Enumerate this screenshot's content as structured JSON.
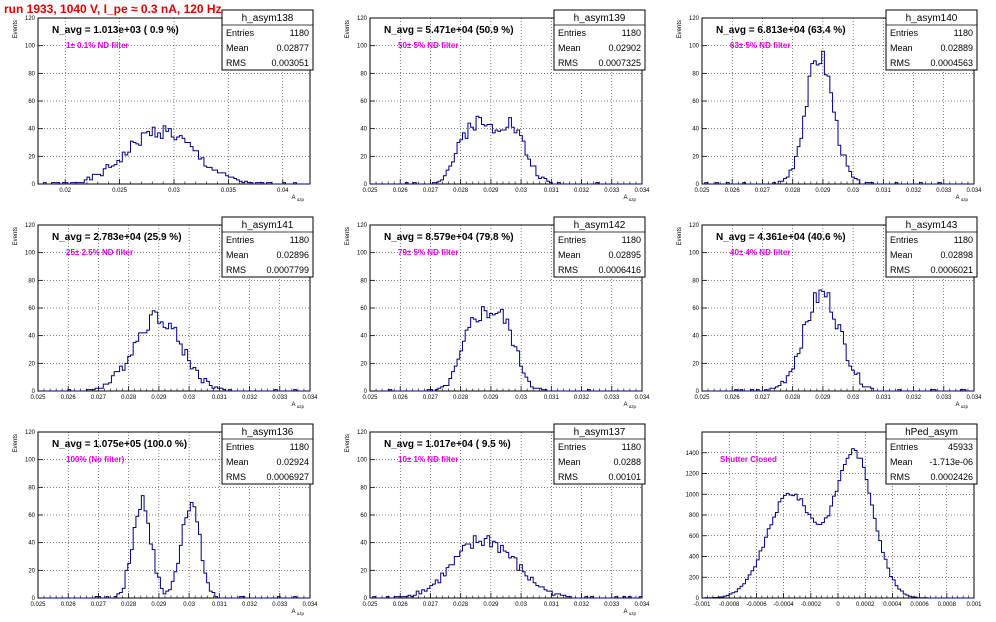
{
  "page": {
    "title": "run 1933,  1040 V, I_pe ≈ 0.3 nA, 120 Hz",
    "title_color": "#e00000",
    "hist_color": "#000080",
    "annotation_color": "#e000e0",
    "grid": true
  },
  "chart_data": [
    {
      "type": "histogram",
      "stats_name": "h_asym138",
      "stats": [
        [
          "Entries",
          "1180"
        ],
        [
          "Mean",
          "0.02877"
        ],
        [
          "RMS",
          "0.003051"
        ]
      ],
      "navg_label": "N_avg = 1.013e+03 ( 0.9 %)",
      "filter_label": "1± 0.1% ND filter",
      "ylabel": "Events",
      "xlabel": "A_uzp",
      "xlim": [
        0.0175,
        0.0425
      ],
      "ylim": [
        0,
        120
      ],
      "xticks": [
        "0.02",
        "0.025",
        "0.03",
        "0.035",
        "0.04"
      ],
      "xtick_values": [
        0.02,
        0.025,
        0.03,
        0.035,
        0.04
      ],
      "yticks": [
        0,
        20,
        40,
        60,
        80,
        100,
        120
      ],
      "shape": {
        "kind": "gauss",
        "mu": 0.02877,
        "sigma": 0.003051,
        "entries": 1180,
        "bins": 100,
        "seed": 1
      }
    },
    {
      "type": "histogram",
      "stats_name": "h_asym139",
      "stats": [
        [
          "Entries",
          "1180"
        ],
        [
          "Mean",
          "0.02902"
        ],
        [
          "RMS",
          "0.0007325"
        ]
      ],
      "navg_label": "N_avg = 5.471e+04 (50.9 %)",
      "filter_label": "50± 5% ND filter",
      "ylabel": "Events",
      "xlabel": "A_uzp",
      "xlim": [
        0.025,
        0.034
      ],
      "ylim": [
        0,
        120
      ],
      "xticks": [
        "0.025",
        "0.026",
        "0.027",
        "0.028",
        "0.029",
        "0.03",
        "0.031",
        "0.032",
        "0.033",
        "0.034"
      ],
      "xtick_values": [
        0.025,
        0.026,
        0.027,
        0.028,
        0.029,
        0.03,
        0.031,
        0.032,
        0.033,
        0.034
      ],
      "yticks": [
        0,
        20,
        40,
        60,
        80,
        100,
        120
      ],
      "shape": {
        "kind": "dgauss",
        "mu": 0.02902,
        "sep": 0.0012,
        "sigma": 0.0005,
        "entries": 1180,
        "bins": 100,
        "seed": 2
      }
    },
    {
      "type": "histogram",
      "stats_name": "h_asym140",
      "stats": [
        [
          "Entries",
          "1180"
        ],
        [
          "Mean",
          "0.02889"
        ],
        [
          "RMS",
          "0.0004563"
        ]
      ],
      "navg_label": "N_avg = 6.813e+04 (63.4 %)",
      "filter_label": "63± 5% ND filter",
      "ylabel": "Events",
      "xlabel": "A_uzp",
      "xlim": [
        0.025,
        0.034
      ],
      "ylim": [
        0,
        120
      ],
      "xticks": [
        "0.025",
        "0.026",
        "0.027",
        "0.028",
        "0.029",
        "0.03",
        "0.031",
        "0.032",
        "0.033",
        "0.034"
      ],
      "xtick_values": [
        0.025,
        0.026,
        0.027,
        0.028,
        0.029,
        0.03,
        0.031,
        0.032,
        0.033,
        0.034
      ],
      "yticks": [
        0,
        20,
        40,
        60,
        80,
        100,
        120
      ],
      "shape": {
        "kind": "gauss",
        "mu": 0.02889,
        "sigma": 0.0004563,
        "entries": 1180,
        "bins": 100,
        "seed": 3
      }
    },
    {
      "type": "histogram",
      "stats_name": "h_asym141",
      "stats": [
        [
          "Entries",
          "1180"
        ],
        [
          "Mean",
          "0.02896"
        ],
        [
          "RMS",
          "0.0007799"
        ]
      ],
      "navg_label": "N_avg = 2.783e+04 (25.9 %)",
      "filter_label": "25± 2.5% ND filter",
      "ylabel": "Events",
      "xlabel": "A_uzp",
      "xlim": [
        0.025,
        0.034
      ],
      "ylim": [
        0,
        120
      ],
      "xticks": [
        "0.025",
        "0.026",
        "0.027",
        "0.028",
        "0.029",
        "0.03",
        "0.031",
        "0.032",
        "0.033",
        "0.034"
      ],
      "xtick_values": [
        0.025,
        0.026,
        0.027,
        0.028,
        0.029,
        0.03,
        0.031,
        0.032,
        0.033,
        0.034
      ],
      "yticks": [
        0,
        20,
        40,
        60,
        80,
        100,
        120
      ],
      "shape": {
        "kind": "gauss",
        "mu": 0.02896,
        "sigma": 0.0007799,
        "entries": 1180,
        "bins": 100,
        "seed": 4
      }
    },
    {
      "type": "histogram",
      "stats_name": "h_asym142",
      "stats": [
        [
          "Entries",
          "1180"
        ],
        [
          "Mean",
          "0.02895"
        ],
        [
          "RMS",
          "0.0006416"
        ]
      ],
      "navg_label": "N_avg = 8.579e+04 (79.8 %)",
      "filter_label": "79± 5% ND filter",
      "ylabel": "Events",
      "xlabel": "A_uzp",
      "xlim": [
        0.025,
        0.034
      ],
      "ylim": [
        0,
        120
      ],
      "xticks": [
        "0.025",
        "0.026",
        "0.027",
        "0.028",
        "0.029",
        "0.03",
        "0.031",
        "0.032",
        "0.033",
        "0.034"
      ],
      "xtick_values": [
        0.025,
        0.026,
        0.027,
        0.028,
        0.029,
        0.03,
        0.031,
        0.032,
        0.033,
        0.034
      ],
      "yticks": [
        0,
        20,
        40,
        60,
        80,
        100,
        120
      ],
      "shape": {
        "kind": "dgauss",
        "mu": 0.02895,
        "sep": 0.0009,
        "sigma": 0.00045,
        "entries": 1180,
        "bins": 100,
        "seed": 5
      }
    },
    {
      "type": "histogram",
      "stats_name": "h_asym143",
      "stats": [
        [
          "Entries",
          "1180"
        ],
        [
          "Mean",
          "0.02898"
        ],
        [
          "RMS",
          "0.0006021"
        ]
      ],
      "navg_label": "N_avg = 4.361e+04 (40.6 %)",
      "filter_label": "40± 4% ND filter",
      "ylabel": "Events",
      "xlabel": "A_uzp",
      "xlim": [
        0.025,
        0.034
      ],
      "ylim": [
        0,
        120
      ],
      "xticks": [
        "0.025",
        "0.026",
        "0.027",
        "0.028",
        "0.029",
        "0.03",
        "0.031",
        "0.032",
        "0.033",
        "0.034"
      ],
      "xtick_values": [
        0.025,
        0.026,
        0.027,
        0.028,
        0.029,
        0.03,
        0.031,
        0.032,
        0.033,
        0.034
      ],
      "yticks": [
        0,
        20,
        40,
        60,
        80,
        100,
        120
      ],
      "shape": {
        "kind": "gauss",
        "mu": 0.02898,
        "sigma": 0.0006021,
        "entries": 1180,
        "bins": 100,
        "seed": 6
      }
    },
    {
      "type": "histogram",
      "stats_name": "h_asym136",
      "stats": [
        [
          "Entries",
          "1180"
        ],
        [
          "Mean",
          "0.02924"
        ],
        [
          "RMS",
          "0.0006927"
        ]
      ],
      "navg_label": "N_avg = 1.075e+05 (100.0 %)",
      "filter_label": "100% (No filter)",
      "ylabel": "Events",
      "xlabel": "A_uzp",
      "xlim": [
        0.025,
        0.034
      ],
      "ylim": [
        0,
        120
      ],
      "xticks": [
        "0.025",
        "0.026",
        "0.027",
        "0.028",
        "0.029",
        "0.03",
        "0.031",
        "0.032",
        "0.033",
        "0.034"
      ],
      "xtick_values": [
        0.025,
        0.026,
        0.027,
        0.028,
        0.029,
        0.03,
        0.031,
        0.032,
        0.033,
        0.034
      ],
      "yticks": [
        0,
        20,
        40,
        60,
        80,
        100,
        120
      ],
      "shape": {
        "kind": "dgauss",
        "mu": 0.02924,
        "sep": 0.0016,
        "sigma": 0.0003,
        "entries": 1180,
        "bins": 100,
        "seed": 7
      }
    },
    {
      "type": "histogram",
      "stats_name": "h_asym137",
      "stats": [
        [
          "Entries",
          "1180"
        ],
        [
          "Mean",
          "0.0288"
        ],
        [
          "RMS",
          "0.00101"
        ]
      ],
      "navg_label": "N_avg = 1.017e+04 ( 9.5 %)",
      "filter_label": "10± 1% ND filter",
      "ylabel": "Events",
      "xlabel": "A_uzp",
      "xlim": [
        0.025,
        0.034
      ],
      "ylim": [
        0,
        120
      ],
      "xticks": [
        "0.025",
        "0.026",
        "0.027",
        "0.028",
        "0.029",
        "0.03",
        "0.031",
        "0.032",
        "0.033",
        "0.034"
      ],
      "xtick_values": [
        0.025,
        0.026,
        0.027,
        0.028,
        0.029,
        0.03,
        0.031,
        0.032,
        0.033,
        0.034
      ],
      "yticks": [
        0,
        20,
        40,
        60,
        80,
        100,
        120
      ],
      "shape": {
        "kind": "gauss",
        "mu": 0.0288,
        "sigma": 0.00101,
        "entries": 1180,
        "bins": 100,
        "seed": 8
      }
    },
    {
      "type": "histogram",
      "stats_name": "hPed_asym",
      "stats": [
        [
          "Entries",
          "45933"
        ],
        [
          "Mean",
          "-1.713e-06"
        ],
        [
          "RMS",
          "0.0002426"
        ]
      ],
      "navg_label": "",
      "filter_label": "Shutter Closed",
      "ylabel": "",
      "xlabel": "",
      "xlim": [
        -0.001,
        0.001
      ],
      "ylim": [
        0,
        1600
      ],
      "xticks": [
        "-0.001",
        "-0.0008",
        "-0.0006",
        "-0.0004",
        "-0.0002",
        "0",
        "0.0002",
        "0.0004",
        "0.0006",
        "0.0008",
        "0.001"
      ],
      "xtick_values": [
        -0.001,
        -0.0008,
        -0.0006,
        -0.0004,
        -0.0002,
        0,
        0.0002,
        0.0004,
        0.0006,
        0.0008,
        0.001
      ],
      "yticks": [
        0,
        200,
        400,
        600,
        800,
        1000,
        1200,
        1400
      ],
      "shape": {
        "kind": "ped",
        "entries": 45933,
        "bins": 100,
        "seed": 9
      }
    }
  ]
}
